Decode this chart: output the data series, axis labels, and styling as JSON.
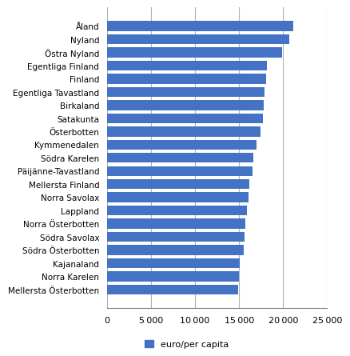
{
  "categories": [
    "Mellersta Österbotten",
    "Norra Karelen",
    "Kajanaland",
    "Södra Österbotten",
    "Södra Savolax",
    "Norra Österbotten",
    "Lappland",
    "Norra Savolax",
    "Mellersta Finland",
    "Päijänne-Tavastland",
    "Södra Karelen",
    "Kymmenedalen",
    "Österbotten",
    "Satakunta",
    "Birkaland",
    "Egentliga Tavastland",
    "Finland",
    "Egentliga Finland",
    "Östra Nyland",
    "Nyland",
    "Åland"
  ],
  "values": [
    14900,
    15000,
    15100,
    15500,
    15600,
    15700,
    15900,
    16100,
    16200,
    16500,
    16600,
    17000,
    17400,
    17700,
    17800,
    17900,
    18100,
    18200,
    19900,
    20700,
    21200
  ],
  "bar_color": "#4472C4",
  "xlim": [
    0,
    25000
  ],
  "xticks": [
    0,
    5000,
    10000,
    15000,
    20000,
    25000
  ],
  "xtick_labels": [
    "0",
    "5 000",
    "10 000",
    "15 000",
    "20 000",
    "25 000"
  ],
  "legend_label": "euro/per capita",
  "background_color": "#ffffff",
  "grid_color": "#b0b0b0",
  "label_fontsize": 7.5,
  "tick_fontsize": 8,
  "bar_height": 0.75
}
